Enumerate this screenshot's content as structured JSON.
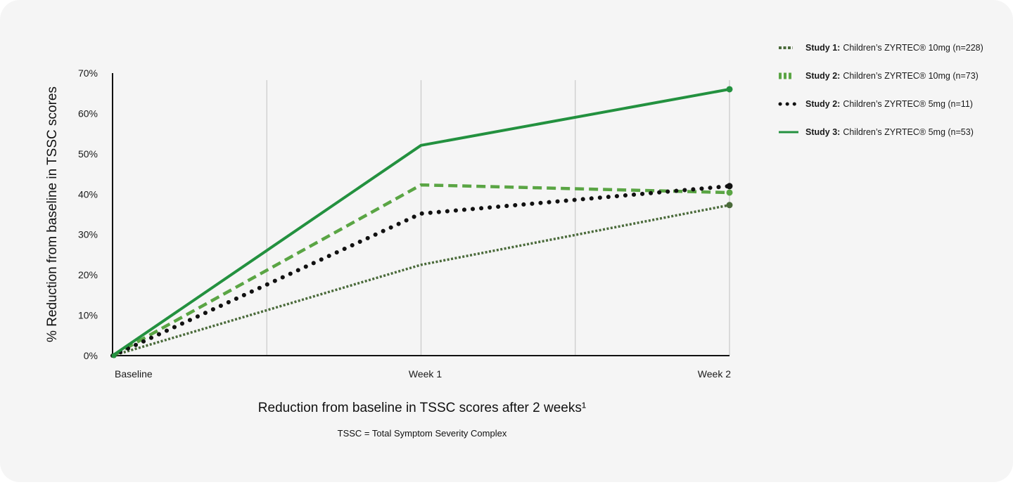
{
  "chart_data": {
    "type": "line",
    "title": "",
    "xlabel": "Reduction from baseline in TSSC scores after 2 weeks¹",
    "footnote": "TSSC = Total Symptom Severity Complex",
    "ylabel": "% Reduction from baseline in TSSC scores",
    "categories": [
      "Baseline",
      "Week 1",
      "Week 2"
    ],
    "y_ticks": [
      "0%",
      "10%",
      "20%",
      "30%",
      "40%",
      "50%",
      "60%",
      "70%"
    ],
    "ylim": [
      0,
      70
    ],
    "grid": "vertical",
    "legend_position": "top-right",
    "series": [
      {
        "study": "Study 1:",
        "name": "Children’s ZYRTEC® 10mg (n=228)",
        "values": [
          0,
          22.5,
          37.3
        ],
        "color": "#4a6a3a",
        "style": "dotted"
      },
      {
        "study": "Study 2:",
        "name": "Children’s ZYRTEC® 10mg (n=73)",
        "values": [
          0,
          42.3,
          40.4
        ],
        "color": "#5aa544",
        "style": "dashed"
      },
      {
        "study": "Study 2:",
        "name": "Children’s ZYRTEC® 5mg (n=11)",
        "values": [
          0,
          35.2,
          42.0
        ],
        "color": "#111111",
        "style": "dots"
      },
      {
        "study": "Study 3:",
        "name": "Children’s ZYRTEC® 5mg (n=53)",
        "values": [
          0,
          52.1,
          66.0
        ],
        "color": "#23913f",
        "style": "solid"
      }
    ]
  }
}
